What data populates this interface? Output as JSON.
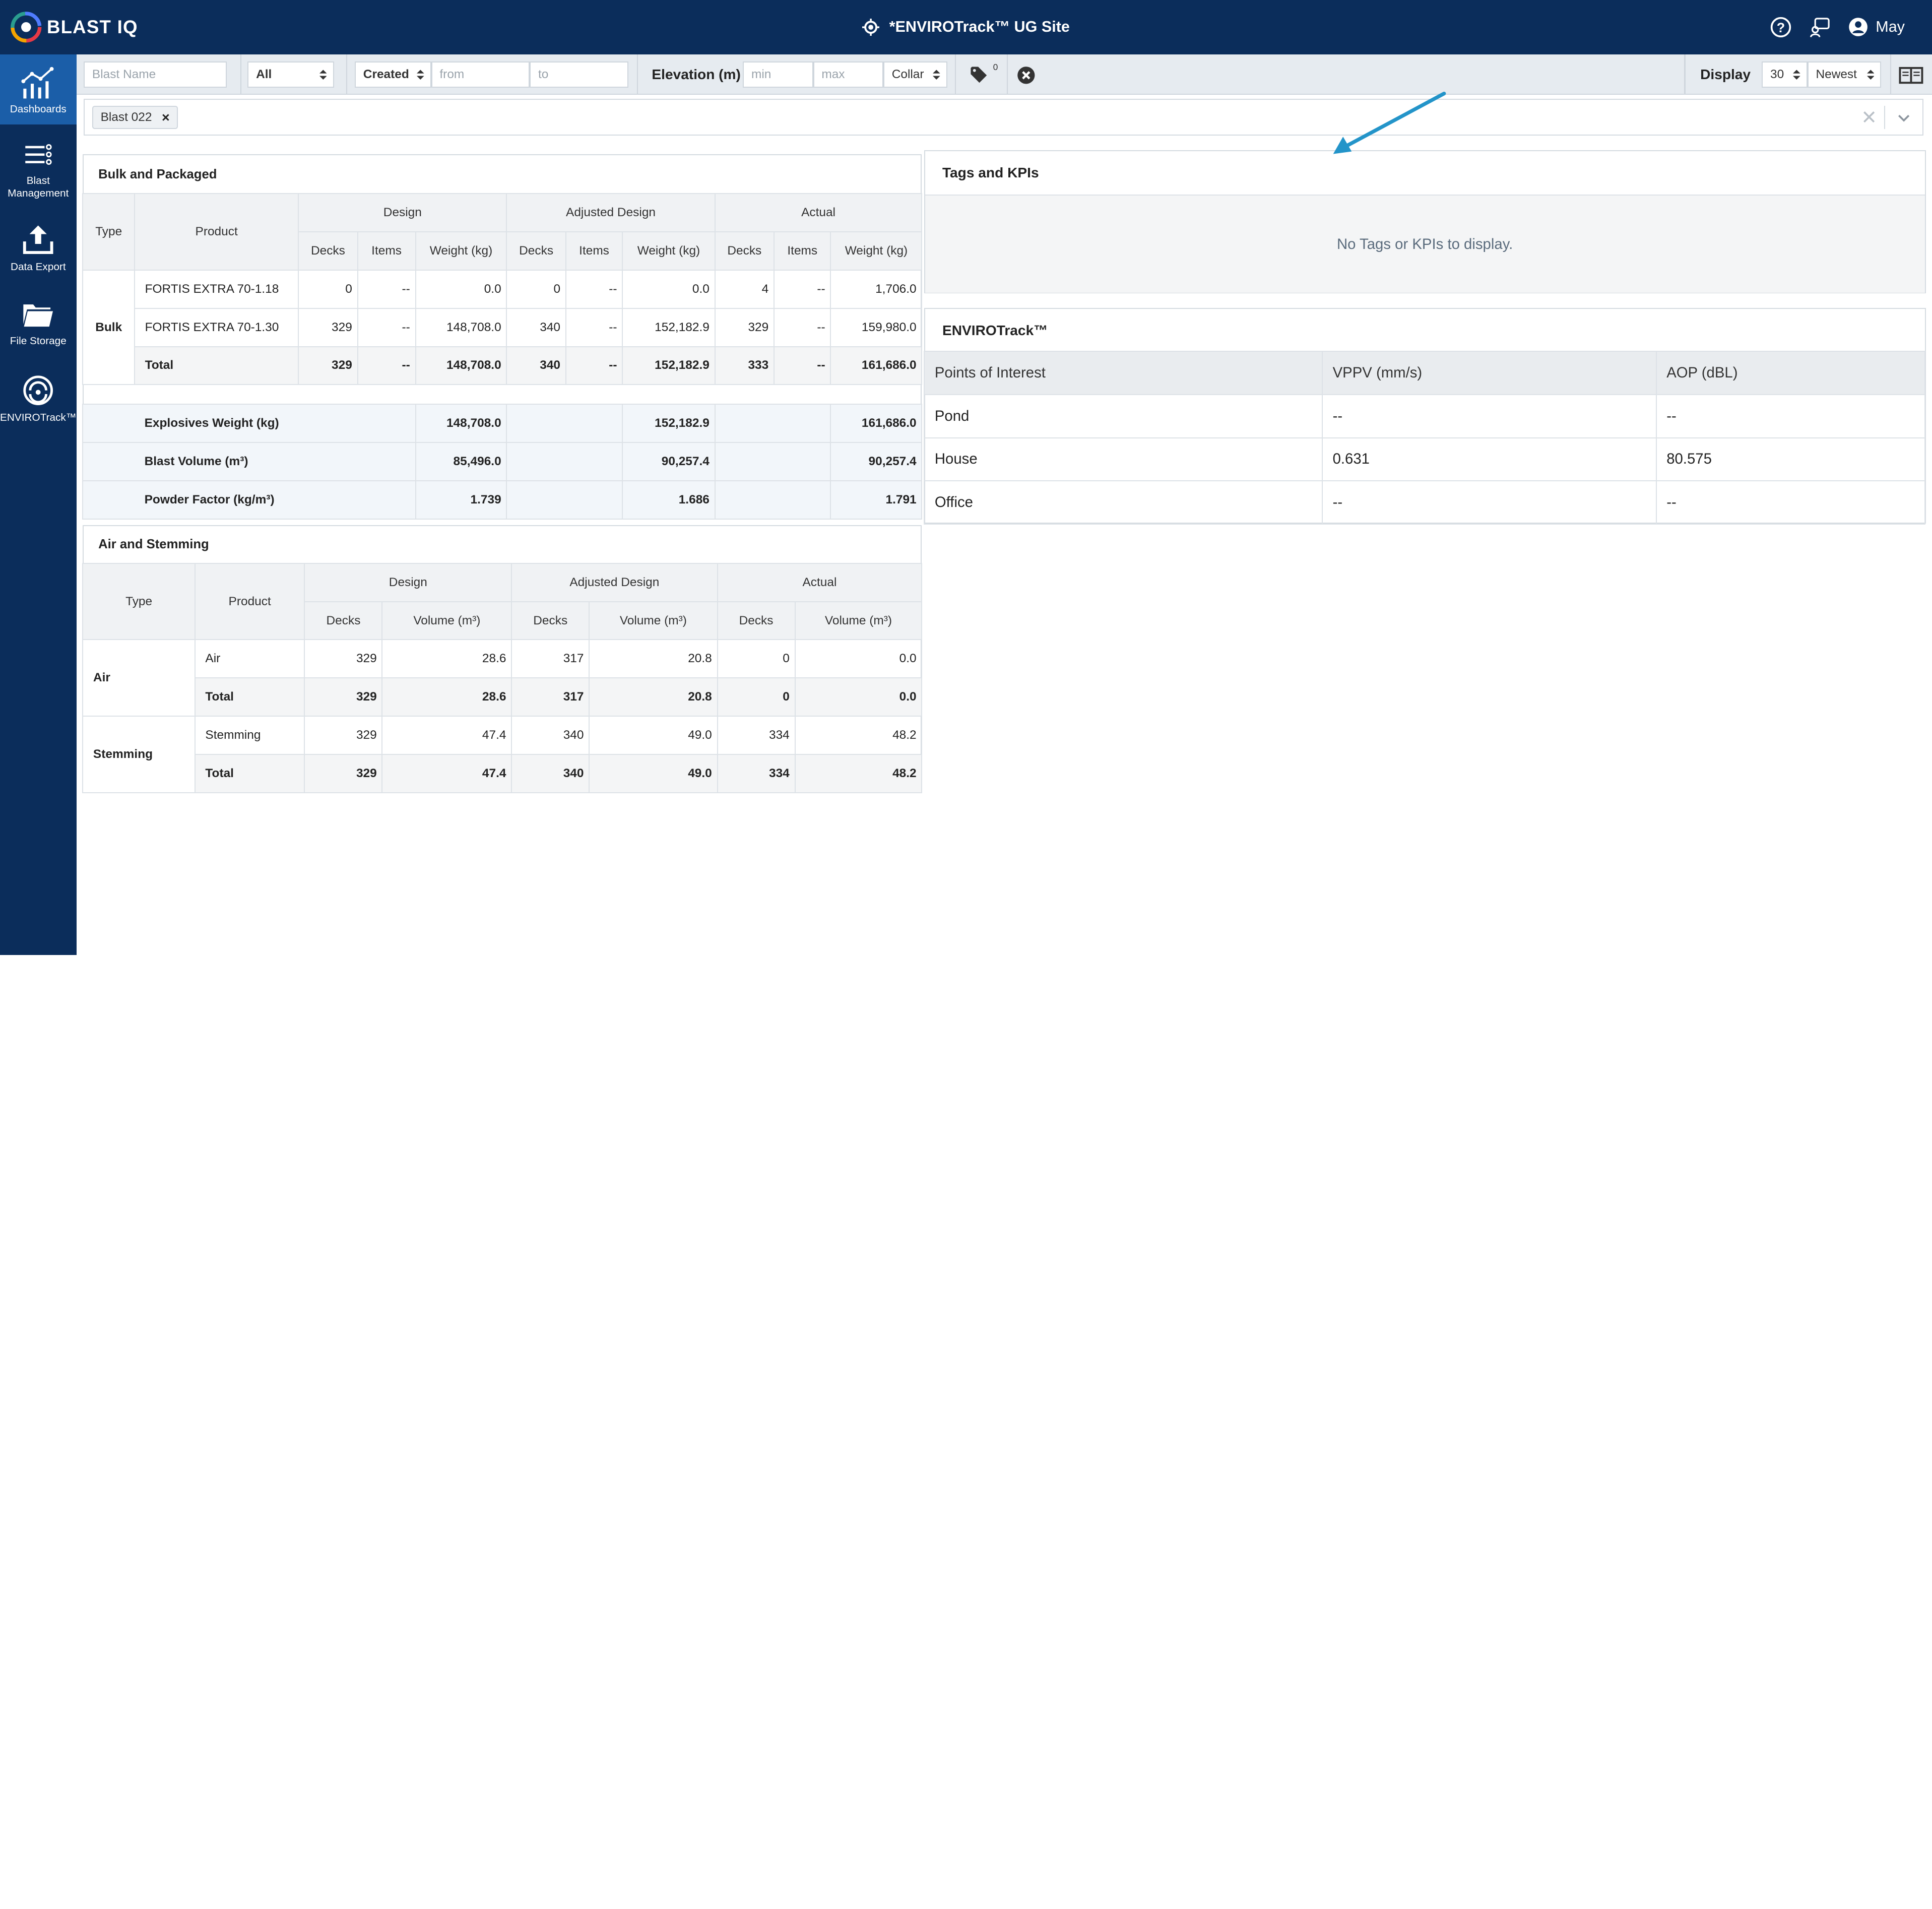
{
  "header": {
    "logo_text": "BLAST IQ",
    "site_title": "*ENVIROTrack™ UG Site",
    "user_name": "May"
  },
  "sidebar": {
    "items": [
      {
        "label": "Dashboards",
        "active": true
      },
      {
        "label": "Blast Management",
        "active": false
      },
      {
        "label": "Data Export",
        "active": false
      },
      {
        "label": "File Storage",
        "active": false
      },
      {
        "label": "ENVIROTrack™",
        "active": false
      }
    ]
  },
  "filters": {
    "blast_name_placeholder": "Blast Name",
    "status_value": "All",
    "date_type_value": "Created",
    "from_placeholder": "from",
    "to_placeholder": "to",
    "elevation_label": "Elevation (m)",
    "min_placeholder": "min",
    "max_placeholder": "max",
    "elevation_ref_value": "Collar",
    "tag_count": "0",
    "display_label": "Display",
    "display_count_value": "30",
    "sort_value": "Newest"
  },
  "tag_bar": {
    "chips": [
      {
        "label": "Blast 022"
      }
    ]
  },
  "bulk_packaged": {
    "title": "Bulk and Packaged",
    "headers": {
      "type": "Type",
      "product": "Product",
      "design": "Design",
      "adjusted": "Adjusted Design",
      "actual": "Actual",
      "decks": "Decks",
      "items": "Items",
      "weight": "Weight (kg)"
    },
    "type_label": "Bulk",
    "rows": [
      {
        "product": "FORTIS EXTRA 70-1.18",
        "cells": [
          "0",
          "--",
          "0.0",
          "0",
          "--",
          "0.0",
          "4",
          "--",
          "1,706.0"
        ]
      },
      {
        "product": "FORTIS EXTRA 70-1.30",
        "cells": [
          "329",
          "--",
          "148,708.0",
          "340",
          "--",
          "152,182.9",
          "329",
          "--",
          "159,980.0"
        ]
      },
      {
        "product": "Total",
        "cells": [
          "329",
          "--",
          "148,708.0",
          "340",
          "--",
          "152,182.9",
          "333",
          "--",
          "161,686.0"
        ]
      }
    ],
    "summary": [
      {
        "label": "Explosives Weight (kg)",
        "design": "148,708.0",
        "adjusted": "152,182.9",
        "actual": "161,686.0"
      },
      {
        "label": "Blast Volume (m³)",
        "design": "85,496.0",
        "adjusted": "90,257.4",
        "actual": "90,257.4"
      },
      {
        "label": "Powder Factor (kg/m³)",
        "design": "1.739",
        "adjusted": "1.686",
        "actual": "1.791"
      }
    ]
  },
  "air_stemming": {
    "title": "Air and Stemming",
    "headers": {
      "type": "Type",
      "product": "Product",
      "design": "Design",
      "adjusted": "Adjusted Design",
      "actual": "Actual",
      "decks": "Decks",
      "volume": "Volume (m³)"
    },
    "groups": [
      {
        "type": "Air",
        "rows": [
          {
            "product": "Air",
            "cells": [
              "329",
              "28.6",
              "317",
              "20.8",
              "0",
              "0.0"
            ]
          },
          {
            "product": "Total",
            "cells": [
              "329",
              "28.6",
              "317",
              "20.8",
              "0",
              "0.0"
            ]
          }
        ]
      },
      {
        "type": "Stemming",
        "rows": [
          {
            "product": "Stemming",
            "cells": [
              "329",
              "47.4",
              "340",
              "49.0",
              "334",
              "48.2"
            ]
          },
          {
            "product": "Total",
            "cells": [
              "329",
              "47.4",
              "340",
              "49.0",
              "334",
              "48.2"
            ]
          }
        ]
      }
    ]
  },
  "tags_kpis": {
    "title": "Tags and KPIs",
    "empty_message": "No Tags or KPIs to display."
  },
  "envirotrack": {
    "title": "ENVIROTrack™",
    "headers": [
      "Points of Interest",
      "VPPV (mm/s)",
      "AOP (dBL)"
    ],
    "rows": [
      [
        "Pond",
        "--",
        "--"
      ],
      [
        "House",
        "0.631",
        "80.575"
      ],
      [
        "Office",
        "--",
        "--"
      ]
    ]
  },
  "colors": {
    "nav_bg": "#0b2d5b",
    "nav_active": "#1b5ea8",
    "annotation_arrow": "#2394c9"
  }
}
